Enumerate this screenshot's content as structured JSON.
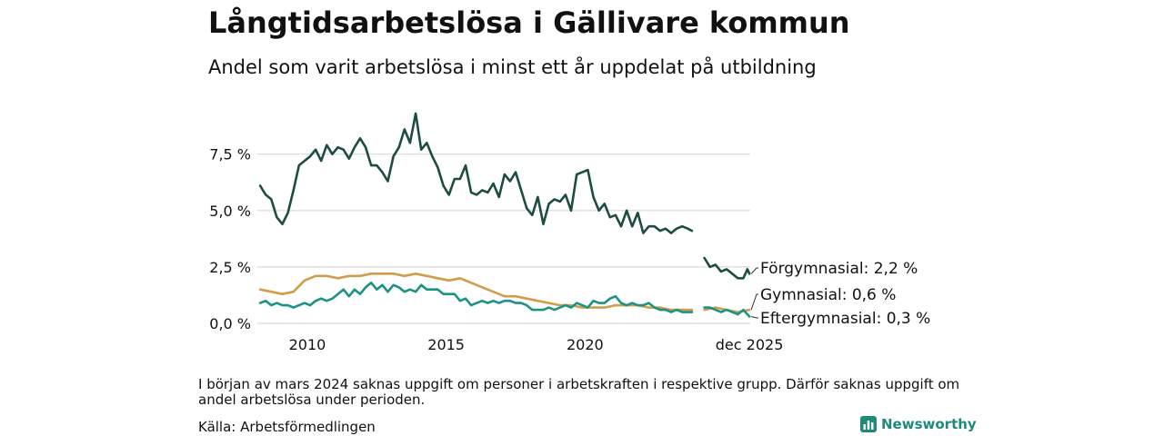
{
  "title": "Långtidsarbetslösa i Gällivare kommun",
  "subtitle": "Andel som varit arbetslösa i minst ett år uppdelat på utbildning",
  "note": "I början av mars 2024 saknas uppgift om personer i arbetskraften i respektive grupp. Därför saknas uppgift om andel arbetslösa under perioden.",
  "source": "Källa: Arbetsförmedlingen",
  "brand": "Newsworthy",
  "colors": {
    "dark": "#1d4c43",
    "gold": "#d19d4a",
    "teal": "#1a9385",
    "grid": "#d9d9d9",
    "brand": "#1f8a7a"
  },
  "chart_data": {
    "type": "line",
    "x_unit": "year",
    "xlim": [
      2008.2,
      2025.95
    ],
    "ylim": [
      0,
      9.5
    ],
    "y_ticks": [
      {
        "value": 0,
        "label": "0,0 %"
      },
      {
        "value": 2.5,
        "label": "2,5 %"
      },
      {
        "value": 5,
        "label": "5,0 %"
      },
      {
        "value": 7.5,
        "label": "7,5 %"
      }
    ],
    "x_ticks": [
      {
        "value": 2010,
        "label": "2010"
      },
      {
        "value": 2015,
        "label": "2015"
      },
      {
        "value": 2020,
        "label": "2020"
      },
      {
        "value": 2025.92,
        "label": "dec 2025"
      }
    ],
    "series": [
      {
        "name": "Förgymnasial",
        "end_label": "Förgymnasial: 2,2 %",
        "color": "dark",
        "segments": [
          {
            "x": [
              2008.3,
              2008.5,
              2008.7,
              2008.9,
              2009.1,
              2009.3,
              2009.5,
              2009.7,
              2009.9,
              2010.1,
              2010.3,
              2010.5,
              2010.7,
              2010.9,
              2011.1,
              2011.3,
              2011.5,
              2011.7,
              2011.9,
              2012.1,
              2012.3,
              2012.5,
              2012.7,
              2012.9,
              2013.1,
              2013.3,
              2013.5,
              2013.7,
              2013.9,
              2014.1,
              2014.3,
              2014.5,
              2014.7,
              2014.9,
              2015.1,
              2015.3,
              2015.5,
              2015.7,
              2015.9,
              2016.1,
              2016.3,
              2016.5,
              2016.7,
              2016.9,
              2017.1,
              2017.3,
              2017.5,
              2017.7,
              2017.9,
              2018.1,
              2018.3,
              2018.5,
              2018.7,
              2018.9,
              2019.1,
              2019.3,
              2019.5,
              2019.7,
              2019.9,
              2020.1,
              2020.3,
              2020.5,
              2020.7,
              2020.9,
              2021.1,
              2021.3,
              2021.5,
              2021.7,
              2021.9,
              2022.1,
              2022.3,
              2022.5,
              2022.7,
              2022.9,
              2023.1,
              2023.3,
              2023.5,
              2023.7,
              2023.85
            ],
            "y": [
              6.1,
              5.7,
              5.5,
              4.7,
              4.4,
              4.9,
              5.9,
              7.0,
              7.2,
              7.4,
              7.7,
              7.2,
              7.9,
              7.5,
              7.8,
              7.7,
              7.3,
              7.8,
              8.2,
              7.8,
              7.0,
              7.0,
              6.7,
              6.3,
              7.4,
              7.8,
              8.6,
              8.0,
              9.3,
              7.7,
              8.0,
              7.4,
              6.9,
              6.1,
              5.7,
              6.4,
              6.4,
              7.0,
              5.8,
              5.7,
              5.9,
              5.8,
              6.2,
              5.6,
              6.6,
              6.3,
              6.7,
              5.9,
              5.1,
              4.8,
              5.6,
              4.4,
              5.3,
              5.5,
              5.4,
              5.7,
              5.0,
              6.6,
              6.7,
              6.8,
              5.6,
              5.0,
              5.3,
              4.7,
              4.8,
              4.3,
              5.0,
              4.3,
              4.9,
              4.0,
              4.3,
              4.3,
              4.1,
              4.2,
              4.0,
              4.2,
              4.3,
              4.2,
              4.1
            ]
          },
          {
            "x": [
              2024.3,
              2024.5,
              2024.7,
              2024.9,
              2025.1,
              2025.3,
              2025.5,
              2025.7,
              2025.85,
              2025.92
            ],
            "y": [
              2.9,
              2.5,
              2.6,
              2.3,
              2.4,
              2.2,
              2.0,
              2.0,
              2.4,
              2.2
            ]
          }
        ]
      },
      {
        "name": "Gymnasial",
        "end_label": "Gymnasial: 0,6 %",
        "color": "gold",
        "segments": [
          {
            "x": [
              2008.3,
              2008.7,
              2009.1,
              2009.5,
              2009.9,
              2010.3,
              2010.7,
              2011.1,
              2011.5,
              2011.9,
              2012.3,
              2012.7,
              2013.1,
              2013.5,
              2013.9,
              2014.3,
              2014.7,
              2015.1,
              2015.5,
              2015.9,
              2016.3,
              2016.7,
              2017.1,
              2017.5,
              2017.9,
              2018.3,
              2018.7,
              2019.1,
              2019.5,
              2019.9,
              2020.3,
              2020.7,
              2021.1,
              2021.5,
              2021.9,
              2022.3,
              2022.7,
              2023.1,
              2023.5,
              2023.85
            ],
            "y": [
              1.5,
              1.4,
              1.3,
              1.4,
              1.9,
              2.1,
              2.1,
              2.0,
              2.1,
              2.1,
              2.2,
              2.2,
              2.2,
              2.1,
              2.2,
              2.1,
              2.0,
              1.9,
              2.0,
              1.8,
              1.6,
              1.4,
              1.2,
              1.2,
              1.1,
              1.0,
              0.9,
              0.8,
              0.8,
              0.7,
              0.7,
              0.7,
              0.8,
              0.8,
              0.8,
              0.7,
              0.7,
              0.6,
              0.6,
              0.6
            ]
          },
          {
            "x": [
              2024.3,
              2024.7,
              2025.1,
              2025.5,
              2025.92
            ],
            "y": [
              0.6,
              0.7,
              0.6,
              0.5,
              0.6
            ]
          }
        ]
      },
      {
        "name": "Eftergymnasial",
        "end_label": "Eftergymnasial: 0,3 %",
        "color": "teal",
        "segments": [
          {
            "x": [
              2008.3,
              2008.5,
              2008.7,
              2008.9,
              2009.1,
              2009.3,
              2009.5,
              2009.7,
              2009.9,
              2010.1,
              2010.3,
              2010.5,
              2010.7,
              2010.9,
              2011.1,
              2011.3,
              2011.5,
              2011.7,
              2011.9,
              2012.1,
              2012.3,
              2012.5,
              2012.7,
              2012.9,
              2013.1,
              2013.3,
              2013.5,
              2013.7,
              2013.9,
              2014.1,
              2014.3,
              2014.5,
              2014.7,
              2014.9,
              2015.1,
              2015.3,
              2015.5,
              2015.7,
              2015.9,
              2016.1,
              2016.3,
              2016.5,
              2016.7,
              2016.9,
              2017.1,
              2017.3,
              2017.5,
              2017.7,
              2017.9,
              2018.1,
              2018.3,
              2018.5,
              2018.7,
              2018.9,
              2019.1,
              2019.3,
              2019.5,
              2019.7,
              2019.9,
              2020.1,
              2020.3,
              2020.5,
              2020.7,
              2020.9,
              2021.1,
              2021.3,
              2021.5,
              2021.7,
              2021.9,
              2022.1,
              2022.3,
              2022.5,
              2022.7,
              2022.9,
              2023.1,
              2023.3,
              2023.5,
              2023.7,
              2023.85
            ],
            "y": [
              0.9,
              1.0,
              0.8,
              0.9,
              0.8,
              0.8,
              0.7,
              0.8,
              0.9,
              0.8,
              1.0,
              1.1,
              1.0,
              1.1,
              1.3,
              1.5,
              1.2,
              1.5,
              1.3,
              1.6,
              1.8,
              1.5,
              1.7,
              1.4,
              1.7,
              1.6,
              1.4,
              1.5,
              1.4,
              1.7,
              1.5,
              1.5,
              1.5,
              1.3,
              1.3,
              1.3,
              1.0,
              1.1,
              0.8,
              0.9,
              1.0,
              0.9,
              1.0,
              0.9,
              1.0,
              1.0,
              0.9,
              0.9,
              0.8,
              0.6,
              0.6,
              0.6,
              0.7,
              0.6,
              0.7,
              0.8,
              0.7,
              0.9,
              0.8,
              0.7,
              1.0,
              0.9,
              0.9,
              1.1,
              1.2,
              0.9,
              0.8,
              0.9,
              0.8,
              0.8,
              0.9,
              0.7,
              0.6,
              0.6,
              0.5,
              0.6,
              0.5,
              0.5,
              0.5
            ]
          },
          {
            "x": [
              2024.3,
              2024.5,
              2024.7,
              2024.9,
              2025.1,
              2025.3,
              2025.5,
              2025.7,
              2025.92
            ],
            "y": [
              0.7,
              0.7,
              0.6,
              0.5,
              0.6,
              0.5,
              0.4,
              0.6,
              0.3
            ]
          }
        ]
      }
    ]
  }
}
